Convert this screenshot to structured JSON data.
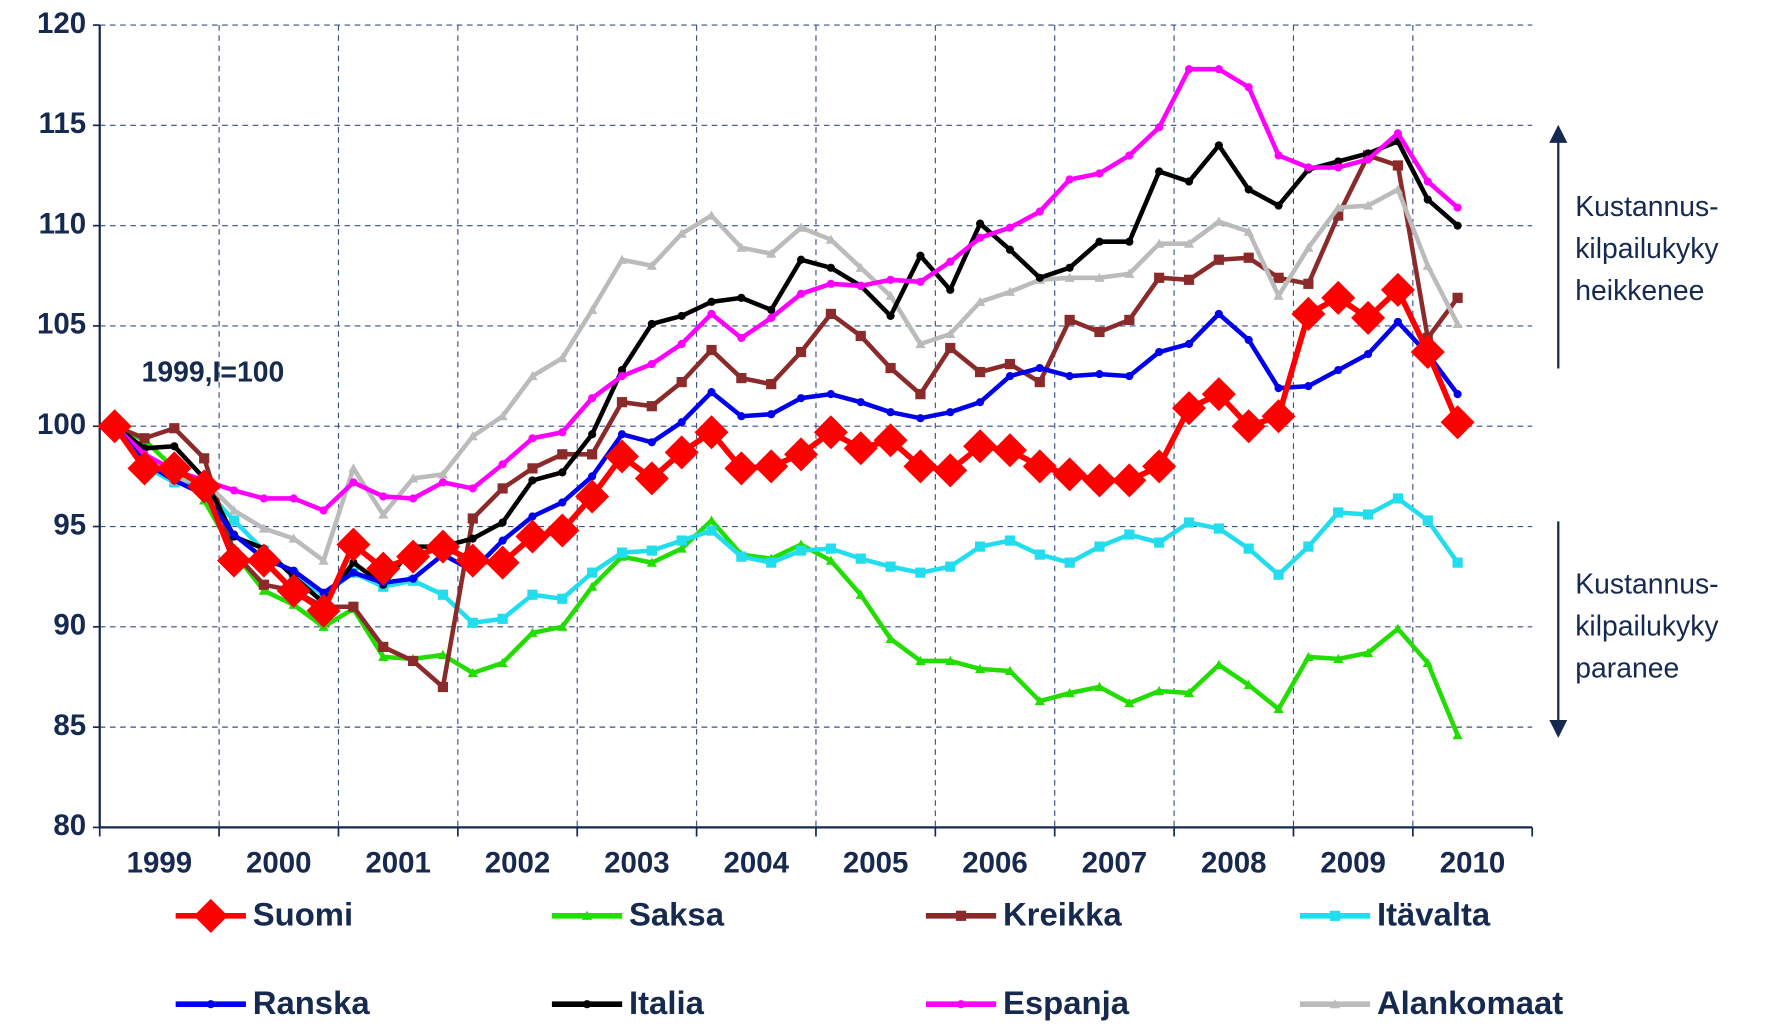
{
  "chart_data": {
    "type": "line",
    "annotation": "1999,I=100",
    "side_notes": [
      [
        "Kustannus-",
        "kilpailukyky",
        "heikkenee"
      ],
      [
        "Kustannus-",
        "kilpailukyky",
        "paranee"
      ]
    ],
    "categories": [
      "1999",
      null,
      null,
      null,
      "2000",
      null,
      null,
      null,
      "2001",
      null,
      null,
      null,
      "2002",
      null,
      null,
      null,
      "2003",
      null,
      null,
      null,
      "2004",
      null,
      null,
      null,
      "2005",
      null,
      null,
      null,
      "2006",
      null,
      null,
      null,
      "2007",
      null,
      null,
      null,
      "2008",
      null,
      null,
      null,
      "2009",
      null,
      null,
      null,
      "2010",
      null
    ],
    "ylim": [
      80,
      120
    ],
    "yticks": [
      80,
      85,
      90,
      95,
      100,
      105,
      110,
      115,
      120
    ],
    "grid": true,
    "legend": "bottom",
    "series": [
      {
        "name": "Suomi",
        "color": "#ff0000",
        "marker": "diamond",
        "values": [
          100,
          97.9,
          97.9,
          97.0,
          93.3,
          93.3,
          91.8,
          90.8,
          94.1,
          92.9,
          93.5,
          94.0,
          93.3,
          93.2,
          94.5,
          94.8,
          96.5,
          98.5,
          97.4,
          98.7,
          99.7,
          97.9,
          98.0,
          98.6,
          99.7,
          98.9,
          99.3,
          98.0,
          97.8,
          99.0,
          98.8,
          98.0,
          97.6,
          97.3,
          97.3,
          98.0,
          100.9,
          101.6,
          100.0,
          100.5,
          105.6,
          106.4,
          105.4,
          106.8,
          103.7,
          100.2
        ]
      },
      {
        "name": "Saksa",
        "color": "#22dd00",
        "marker": "triangle",
        "values": [
          100,
          99.3,
          97.9,
          96.3,
          93.7,
          91.8,
          91.1,
          90.0,
          90.9,
          88.5,
          88.4,
          88.6,
          87.7,
          88.2,
          89.7,
          90.0,
          92.0,
          93.5,
          93.2,
          93.9,
          95.3,
          93.6,
          93.4,
          94.1,
          93.3,
          91.6,
          89.4,
          88.3,
          88.3,
          87.9,
          87.8,
          86.3,
          86.7,
          87.0,
          86.2,
          86.8,
          86.7,
          88.1,
          87.1,
          85.9,
          88.5,
          88.4,
          88.7,
          89.9,
          88.2,
          84.6
        ]
      },
      {
        "name": "Kreikka",
        "color": "#8b2a2a",
        "marker": "square",
        "values": [
          100,
          99.4,
          99.9,
          98.4,
          93.7,
          92.1,
          91.8,
          91.0,
          91.0,
          89.0,
          88.3,
          87.0,
          95.4,
          96.9,
          97.9,
          98.6,
          98.6,
          101.2,
          101.0,
          102.2,
          103.8,
          102.4,
          102.1,
          103.7,
          105.6,
          104.5,
          102.9,
          101.6,
          103.9,
          102.7,
          103.1,
          102.2,
          105.3,
          104.7,
          105.3,
          107.4,
          107.3,
          108.3,
          108.4,
          107.4,
          107.1,
          110.5,
          113.5,
          113.0,
          104.4,
          106.4
        ]
      },
      {
        "name": "Itävalta",
        "color": "#22ddee",
        "marker": "square",
        "values": [
          100,
          98.0,
          97.2,
          96.9,
          95.3,
          93.8,
          92.6,
          91.6,
          92.7,
          92.0,
          92.3,
          91.6,
          90.2,
          90.4,
          91.6,
          91.4,
          92.7,
          93.7,
          93.8,
          94.3,
          94.8,
          93.5,
          93.2,
          93.8,
          93.9,
          93.4,
          93.0,
          92.7,
          93.0,
          94.0,
          94.3,
          93.6,
          93.2,
          94.0,
          94.6,
          94.2,
          95.2,
          94.9,
          93.9,
          92.6,
          94.0,
          95.7,
          95.6,
          96.4,
          95.3,
          93.2
        ]
      },
      {
        "name": "Ranska",
        "color": "#0000ee",
        "marker": "circle",
        "values": [
          100,
          98.2,
          97.3,
          96.6,
          94.6,
          93.4,
          92.8,
          91.7,
          92.7,
          92.2,
          92.4,
          93.6,
          92.8,
          94.3,
          95.5,
          96.2,
          97.5,
          99.6,
          99.2,
          100.2,
          101.7,
          100.5,
          100.6,
          101.4,
          101.6,
          101.2,
          100.7,
          100.4,
          100.7,
          101.2,
          102.5,
          102.9,
          102.5,
          102.6,
          102.5,
          103.7,
          104.1,
          105.6,
          104.3,
          101.9,
          102.0,
          102.8,
          103.6,
          105.2,
          103.6,
          101.6
        ]
      },
      {
        "name": "Italia",
        "color": "#000000",
        "marker": "circle",
        "values": [
          100,
          98.9,
          99.0,
          97.4,
          94.5,
          93.9,
          92.5,
          91.2,
          93.2,
          92.1,
          94.0,
          94.0,
          94.4,
          95.2,
          97.3,
          97.7,
          99.6,
          102.8,
          105.1,
          105.5,
          106.2,
          106.4,
          105.8,
          108.3,
          107.9,
          107.0,
          105.5,
          108.5,
          106.8,
          110.1,
          108.8,
          107.4,
          107.9,
          109.2,
          109.2,
          112.7,
          112.2,
          114.0,
          111.8,
          111.0,
          112.8,
          113.2,
          113.6,
          114.2,
          111.3,
          110.0
        ]
      },
      {
        "name": "Espanja",
        "color": "#ff00ff",
        "marker": "circle",
        "values": [
          100,
          98.6,
          97.8,
          97.3,
          96.8,
          96.4,
          96.4,
          95.8,
          97.2,
          96.5,
          96.4,
          97.2,
          96.9,
          98.1,
          99.4,
          99.7,
          101.4,
          102.5,
          103.1,
          104.1,
          105.6,
          104.4,
          105.4,
          106.6,
          107.1,
          107.0,
          107.3,
          107.2,
          108.2,
          109.4,
          109.9,
          110.7,
          112.3,
          112.6,
          113.5,
          114.9,
          117.8,
          117.8,
          116.9,
          113.5,
          112.9,
          112.9,
          113.3,
          114.6,
          112.2,
          110.9
        ]
      },
      {
        "name": "Alankomaat",
        "color": "#bbbbbb",
        "marker": "triangle",
        "values": [
          100,
          98.5,
          97.3,
          97.3,
          95.8,
          94.9,
          94.4,
          93.3,
          97.9,
          95.6,
          97.4,
          97.6,
          99.5,
          100.5,
          102.5,
          103.4,
          105.8,
          108.3,
          108.0,
          109.6,
          110.5,
          108.9,
          108.6,
          109.9,
          109.3,
          107.9,
          106.5,
          104.1,
          104.6,
          106.2,
          106.7,
          107.3,
          107.4,
          107.4,
          107.6,
          109.1,
          109.1,
          110.2,
          109.7,
          106.5,
          108.9,
          110.9,
          111.0,
          111.8,
          108.0,
          105.1
        ]
      }
    ]
  }
}
